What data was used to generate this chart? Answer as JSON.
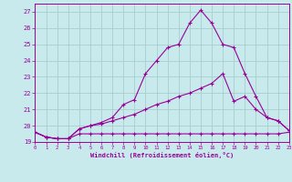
{
  "xlabel": "Windchill (Refroidissement éolien,°C)",
  "background_color": "#c8eaec",
  "grid_color": "#a8cece",
  "line_color": "#990099",
  "xlim": [
    0,
    23
  ],
  "ylim": [
    19,
    27.5
  ],
  "yticks": [
    19,
    20,
    21,
    22,
    23,
    24,
    25,
    26,
    27
  ],
  "xticks": [
    0,
    1,
    2,
    3,
    4,
    5,
    6,
    7,
    8,
    9,
    10,
    11,
    12,
    13,
    14,
    15,
    16,
    17,
    18,
    19,
    20,
    21,
    22,
    23
  ],
  "line1_x": [
    0,
    1,
    2,
    3,
    4,
    5,
    6,
    7,
    8,
    9,
    10,
    11,
    12,
    13,
    14,
    15,
    16,
    17,
    18,
    19,
    20,
    21,
    22,
    23
  ],
  "line1_y": [
    19.6,
    19.3,
    19.2,
    19.2,
    19.5,
    19.5,
    19.5,
    19.5,
    19.5,
    19.5,
    19.5,
    19.5,
    19.5,
    19.5,
    19.5,
    19.5,
    19.5,
    19.5,
    19.5,
    19.5,
    19.5,
    19.5,
    19.5,
    19.6
  ],
  "line2_x": [
    0,
    1,
    2,
    3,
    4,
    5,
    6,
    7,
    8,
    9,
    10,
    11,
    12,
    13,
    14,
    15,
    16,
    17,
    18,
    19,
    20,
    21,
    22,
    23
  ],
  "line2_y": [
    19.6,
    19.3,
    19.2,
    19.2,
    19.8,
    20.0,
    20.1,
    20.3,
    20.5,
    20.7,
    21.0,
    21.3,
    21.5,
    21.8,
    22.0,
    22.3,
    22.6,
    23.2,
    21.5,
    21.8,
    21.0,
    20.5,
    20.3,
    19.7
  ],
  "line3_x": [
    0,
    1,
    2,
    3,
    4,
    5,
    6,
    7,
    8,
    9,
    10,
    11,
    12,
    13,
    14,
    15,
    16,
    17,
    18,
    19,
    20,
    21,
    22,
    23
  ],
  "line3_y": [
    19.6,
    19.3,
    19.2,
    19.2,
    19.8,
    20.0,
    20.2,
    20.5,
    21.3,
    21.6,
    23.2,
    24.0,
    24.8,
    25.0,
    26.3,
    27.1,
    26.3,
    25.0,
    24.8,
    23.2,
    21.8,
    20.5,
    20.3,
    19.7
  ]
}
